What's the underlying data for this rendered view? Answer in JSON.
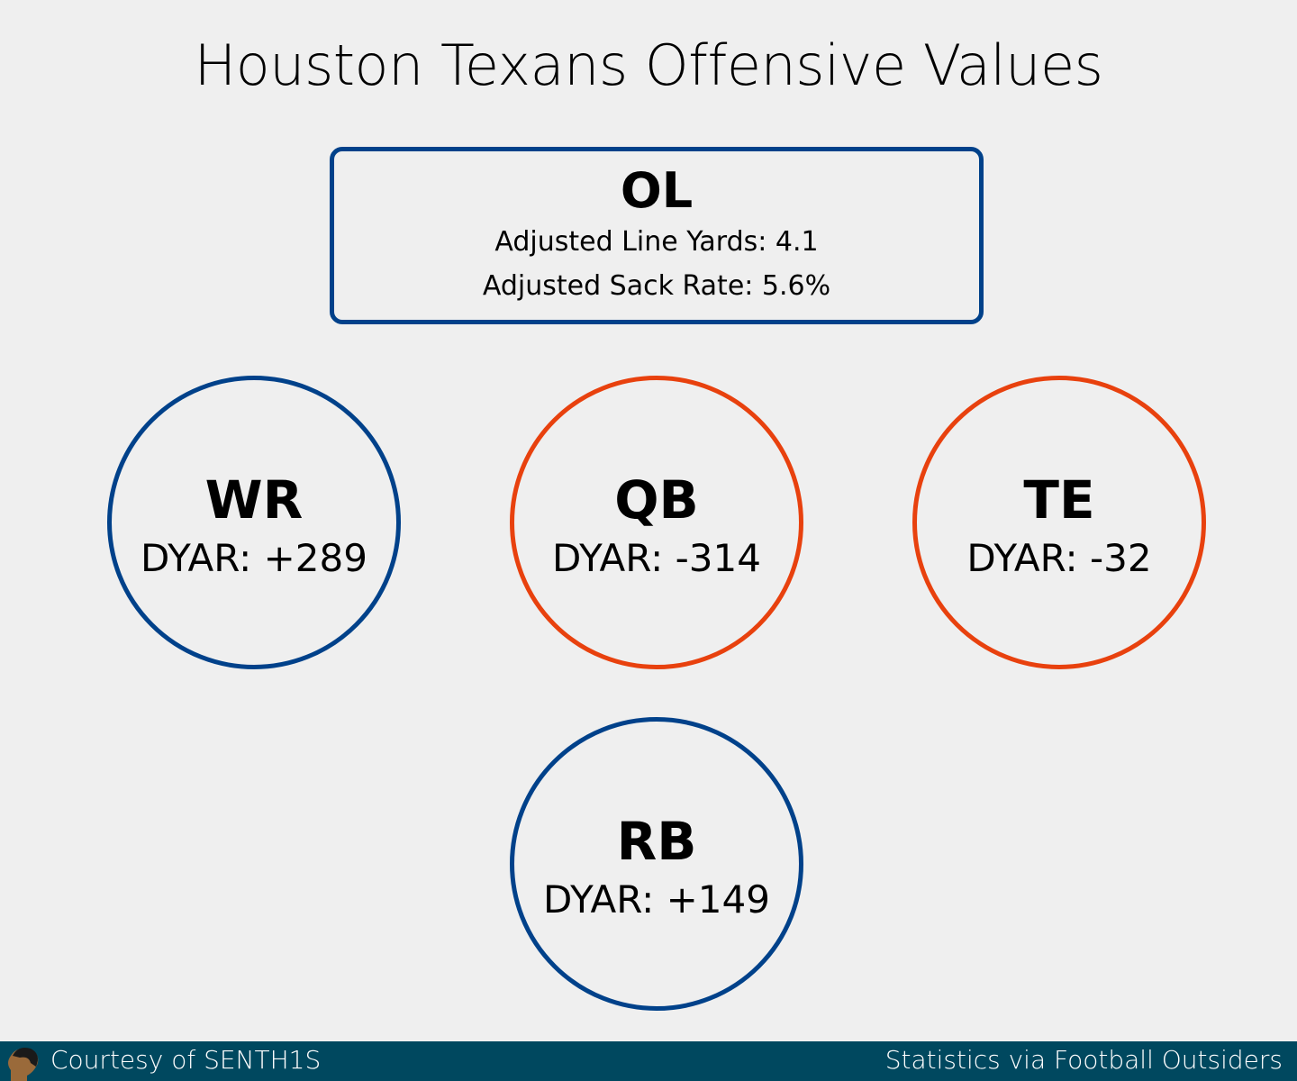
{
  "title": "Houston Texans Offensive Values",
  "colors": {
    "positive": "#00418a",
    "negative": "#e8410e",
    "footer": "#00485f"
  },
  "ol": {
    "label": "OL",
    "line1": "Adjusted Line Yards: 4.1",
    "line2": "Adjusted Sack Rate: 5.6%"
  },
  "positions": {
    "wr": {
      "label": "WR",
      "value": "DYAR: +289"
    },
    "qb": {
      "label": "QB",
      "value": "DYAR: -314"
    },
    "te": {
      "label": "TE",
      "value": "DYAR: -32"
    },
    "rb": {
      "label": "RB",
      "value": "DYAR: +149"
    }
  },
  "footer": {
    "left": "Courtesy of SENTH1S",
    "right": "Statistics via Football Outsiders"
  }
}
